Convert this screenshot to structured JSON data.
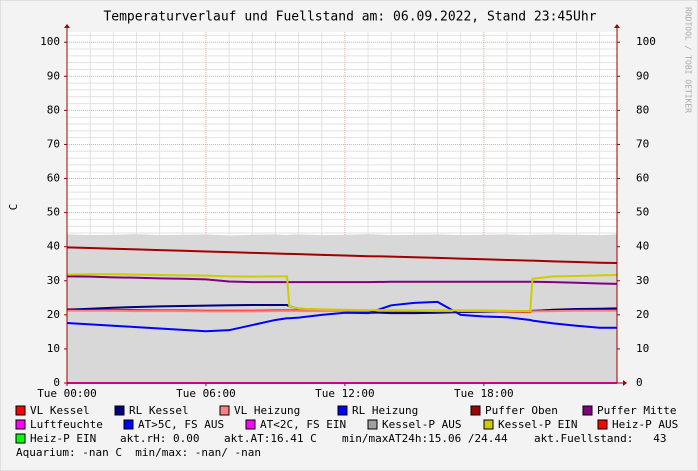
{
  "chart_data": {
    "type": "line",
    "title": "Temperaturverlauf und Fuellstand am: 06.09.2022, Stand 23:45Uhr",
    "ylabel": "C",
    "watermark": "RRDTOOL / TOBI OETIKER",
    "x": [
      0,
      1,
      2,
      3,
      4,
      5,
      6,
      7,
      8,
      9,
      9.5,
      9.6,
      10,
      11,
      12,
      13,
      14,
      15,
      16,
      17,
      18,
      19,
      20,
      20.1,
      21,
      22,
      23,
      23.75
    ],
    "xlim": [
      0,
      23.75
    ],
    "xticks": [
      {
        "value": 0,
        "label": "Tue 00:00"
      },
      {
        "value": 6,
        "label": "Tue 06:00"
      },
      {
        "value": 12,
        "label": "Tue 12:00"
      },
      {
        "value": 18,
        "label": "Tue 18:00"
      }
    ],
    "xminorticks": [
      1,
      2,
      3,
      4,
      5,
      7,
      8,
      9,
      10,
      11,
      13,
      14,
      15,
      16,
      17,
      19,
      20,
      21,
      22,
      23
    ],
    "ylim": [
      0,
      103
    ],
    "yticks": [
      0,
      10,
      20,
      30,
      40,
      50,
      60,
      70,
      80,
      90,
      100
    ],
    "yminorticks": [
      2,
      4,
      6,
      8,
      12,
      14,
      16,
      18,
      22,
      24,
      26,
      28,
      32,
      34,
      36,
      38,
      42,
      44,
      46,
      48,
      52,
      54,
      56,
      58,
      62,
      64,
      66,
      68,
      72,
      74,
      76,
      78,
      82,
      84,
      86,
      88,
      92,
      94,
      96,
      98,
      102
    ],
    "grid": true,
    "series": [
      {
        "name": "VL Kessel",
        "color": "#ff0000",
        "values": [
          21.6,
          21.6,
          21.5,
          21.4,
          21.3,
          21.3,
          21.2,
          21.2,
          21.2,
          21.3,
          21.3,
          21.3,
          21.3,
          21.2,
          21.2,
          20.5,
          20.9,
          21.0,
          21.0,
          21.1,
          21.1,
          20.9,
          20.8,
          21.2,
          21.4,
          21.5,
          21.6,
          21.6
        ]
      },
      {
        "name": "RL Kessel",
        "color": "#000080",
        "values": [
          21.5,
          21.8,
          22.1,
          22.3,
          22.5,
          22.6,
          22.7,
          22.8,
          22.9,
          22.9,
          22.9,
          22.5,
          21.8,
          21.5,
          21.2,
          20.8,
          20.5,
          20.5,
          20.6,
          20.8,
          20.9,
          21.0,
          21.0,
          21.1,
          21.5,
          21.7,
          21.8,
          21.9
        ]
      },
      {
        "name": "VL Heizung",
        "color": "#ff8080",
        "values": [
          21.2,
          21.2,
          21.2,
          21.1,
          21.1,
          21.1,
          21.0,
          21.0,
          21.0,
          21.1,
          21.1,
          21.1,
          21.1,
          21.1,
          21.2,
          21.2,
          21.2,
          21.2,
          21.1,
          21.1,
          21.1,
          21.0,
          21.0,
          21.0,
          21.1,
          21.2,
          21.2,
          21.2
        ]
      },
      {
        "name": "RL Heizung",
        "color": "#0000ff",
        "values": [
          17.6,
          17.2,
          16.8,
          16.4,
          16.0,
          15.6,
          15.2,
          15.5,
          17.0,
          18.5,
          19.0,
          19.0,
          19.2,
          20.0,
          20.6,
          20.5,
          22.8,
          23.5,
          23.8,
          20.0,
          19.5,
          19.3,
          18.5,
          18.3,
          17.5,
          16.8,
          16.2,
          16.2
        ]
      },
      {
        "name": "Puffer Oben",
        "color": "#a00000",
        "values": [
          39.8,
          39.6,
          39.4,
          39.2,
          39.0,
          38.8,
          38.6,
          38.4,
          38.2,
          38.0,
          37.9,
          37.9,
          37.8,
          37.6,
          37.4,
          37.2,
          37.1,
          36.9,
          36.7,
          36.5,
          36.3,
          36.1,
          35.9,
          35.9,
          35.7,
          35.5,
          35.3,
          35.2
        ]
      },
      {
        "name": "Puffer Mitte",
        "color": "#800080",
        "values": [
          31.3,
          31.2,
          31.0,
          30.9,
          30.7,
          30.6,
          30.4,
          29.8,
          29.6,
          29.6,
          29.6,
          29.6,
          29.6,
          29.6,
          29.6,
          29.6,
          29.7,
          29.7,
          29.7,
          29.7,
          29.7,
          29.7,
          29.7,
          29.7,
          29.6,
          29.4,
          29.2,
          29.1
        ]
      },
      {
        "name": "Luftfeuchte",
        "color": "#ff00ff",
        "values": [
          0,
          0,
          0,
          0,
          0,
          0,
          0,
          0,
          0,
          0,
          0,
          0,
          0,
          0,
          0,
          0,
          0,
          0,
          0,
          0,
          0,
          0,
          0,
          0,
          0,
          0,
          0,
          0
        ]
      },
      {
        "name": "AT>5C, FS AUS",
        "color": "#0000ff"
      },
      {
        "name": "AT<2C, FS EIN",
        "color": "#ff00ff"
      },
      {
        "name": "Kessel-P AUS",
        "color": "#a0a0a0",
        "area": true,
        "values": [
          43.6,
          43.4,
          43.5,
          43.7,
          43.4,
          43.5,
          43.6,
          43.3,
          43.5,
          43.6,
          43.4,
          43.5,
          43.6,
          43.4,
          43.5,
          43.7,
          43.4,
          43.5,
          43.6,
          43.4,
          43.5,
          43.6,
          43.4,
          43.5,
          43.6,
          43.5,
          43.4,
          43.6
        ]
      },
      {
        "name": "Kessel-P EIN",
        "color": "#cccc00",
        "values": [
          31.8,
          31.9,
          31.9,
          31.8,
          31.7,
          31.6,
          31.5,
          31.3,
          31.2,
          31.3,
          31.3,
          22.5,
          21.8,
          21.6,
          21.5,
          21.4,
          21.4,
          21.3,
          21.3,
          21.3,
          21.3,
          21.2,
          21.0,
          30.6,
          31.3,
          31.4,
          31.6,
          31.7
        ]
      },
      {
        "name": "Heiz-P AUS",
        "color": "#ff0000"
      },
      {
        "name": "Heiz-P EIN",
        "color": "#00ff00"
      }
    ],
    "status": [
      "akt.rH: 0.00",
      "akt.AT:16.41 C",
      "min/maxAT24h:15.06 /24.44",
      "akt.Fuellstand:   43",
      "Aquarium: -nan C  min/max: -nan/ -nan"
    ]
  }
}
